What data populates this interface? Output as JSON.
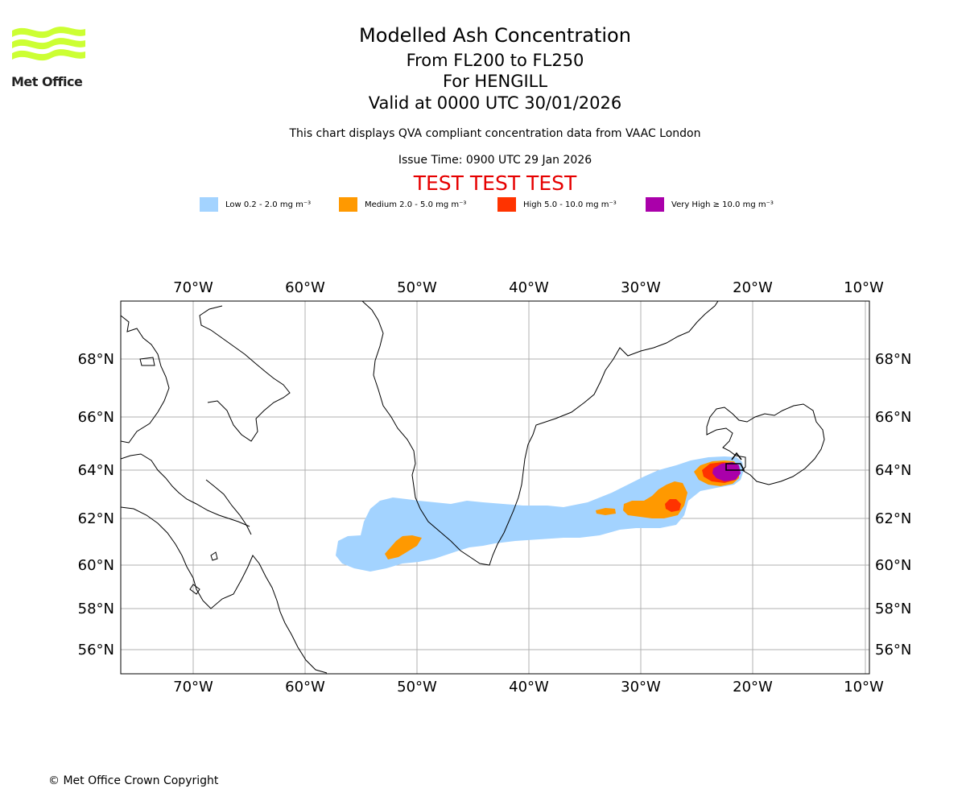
{
  "header": {
    "title": "Modelled Ash Concentration",
    "levels": "From FL200 to FL250",
    "volcano": "For HENGILL",
    "valid": "Valid at 0000 UTC 30/01/2026",
    "description": "This chart displays QVA compliant concentration data from VAAC London",
    "issue_time": "Issue Time: 0900 UTC 29 Jan 2026",
    "test_banner": "TEST TEST TEST"
  },
  "logo": {
    "text": "Met Office",
    "color": "#ccff33"
  },
  "legend": [
    {
      "label": "Low 0.2 - 2.0 mg m⁻³",
      "color": "#a3d3ff"
    },
    {
      "label": "Medium 2.0 - 5.0 mg m⁻³",
      "color": "#ff9900"
    },
    {
      "label": "High 5.0 - 10.0 mg m⁻³",
      "color": "#ff3300"
    },
    {
      "label": "Very High ≥ 10.0 mg m⁻³",
      "color": "#aa00aa"
    }
  ],
  "map": {
    "lon_ticks": [
      "70°W",
      "60°W",
      "50°W",
      "40°W",
      "30°W",
      "20°W",
      "10°W"
    ],
    "lat_ticks": [
      "68°N",
      "66°N",
      "64°N",
      "62°N",
      "60°N",
      "58°N",
      "56°N"
    ]
  },
  "footer": {
    "copyright": "© Met Office Crown Copyright"
  }
}
